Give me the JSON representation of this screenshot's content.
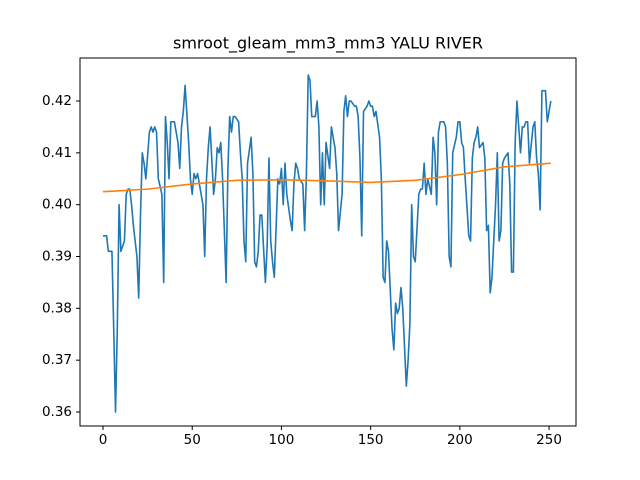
{
  "chart_data": {
    "type": "line",
    "title": "smroot_gleam_mm3_mm3 YALU RIVER",
    "xlim": [
      -12.9,
      265.1
    ],
    "ylim": [
      0.3573,
      0.4283
    ],
    "xticks": [
      0,
      50,
      100,
      150,
      200,
      250
    ],
    "yticks": [
      {
        "value": 0.36,
        "label": "0.36"
      },
      {
        "value": 0.37,
        "label": "0.37"
      },
      {
        "value": 0.38,
        "label": "0.38"
      },
      {
        "value": 0.39,
        "label": "0.39"
      },
      {
        "value": 0.4,
        "label": "0.40"
      },
      {
        "value": 0.41,
        "label": "0.41"
      },
      {
        "value": 0.42,
        "label": "0.42"
      }
    ],
    "series": [
      {
        "color": "#1f77b4",
        "x": [
          0,
          1,
          2,
          3,
          5,
          6,
          7,
          8,
          9,
          10,
          12,
          13,
          14,
          15,
          16,
          17,
          19,
          20,
          21,
          22,
          23,
          24,
          26,
          27,
          28,
          29,
          30,
          31,
          33,
          34,
          35,
          36,
          37,
          38,
          40,
          41,
          42,
          43,
          44,
          45,
          46,
          48,
          49,
          50,
          51,
          52,
          53,
          55,
          56,
          57,
          58,
          59,
          60,
          62,
          63,
          64,
          65,
          66,
          67,
          69,
          70,
          71,
          72,
          73,
          74,
          76,
          77,
          78,
          79,
          80,
          81,
          83,
          84,
          85,
          86,
          87,
          88,
          89,
          91,
          92,
          93,
          94,
          95,
          96,
          98,
          99,
          100,
          101,
          102,
          103,
          105,
          106,
          107,
          108,
          109,
          110,
          112,
          113,
          114,
          115,
          116,
          117,
          119,
          120,
          121,
          122,
          123,
          124,
          125,
          127,
          128,
          129,
          130,
          131,
          132,
          134,
          135,
          136,
          137,
          138,
          139,
          141,
          142,
          143,
          144,
          145,
          146,
          148,
          149,
          150,
          151,
          152,
          153,
          155,
          156,
          157,
          158,
          159,
          160,
          162,
          163,
          164,
          165,
          166,
          167,
          168,
          170,
          171,
          172,
          173,
          174,
          175,
          177,
          178,
          179,
          180,
          181,
          182,
          184,
          185,
          186,
          187,
          188,
          189,
          191,
          192,
          193,
          194,
          195,
          196,
          198,
          199,
          200,
          201,
          202,
          203,
          205,
          206,
          207,
          208,
          209,
          210,
          211,
          213,
          214,
          215,
          216,
          217,
          218,
          220,
          221,
          222,
          223,
          224,
          225,
          227,
          228,
          229,
          230,
          231,
          232,
          234,
          235,
          236,
          237,
          238,
          239,
          241,
          242,
          243,
          244,
          245,
          246,
          248,
          249,
          250,
          251
        ],
        "values": [
          0.394,
          0.394,
          0.394,
          0.391,
          0.391,
          0.376,
          0.36,
          0.376,
          0.4,
          0.391,
          0.393,
          0.402,
          0.403,
          0.403,
          0.4,
          0.396,
          0.39,
          0.382,
          0.398,
          0.41,
          0.408,
          0.405,
          0.414,
          0.415,
          0.414,
          0.415,
          0.414,
          0.405,
          0.402,
          0.385,
          0.417,
          0.412,
          0.405,
          0.416,
          0.416,
          0.414,
          0.412,
          0.407,
          0.415,
          0.418,
          0.423,
          0.412,
          0.405,
          0.402,
          0.406,
          0.405,
          0.406,
          0.402,
          0.4,
          0.39,
          0.405,
          0.411,
          0.415,
          0.402,
          0.405,
          0.411,
          0.41,
          0.412,
          0.405,
          0.385,
          0.407,
          0.417,
          0.414,
          0.417,
          0.417,
          0.416,
          0.41,
          0.405,
          0.393,
          0.389,
          0.408,
          0.413,
          0.406,
          0.389,
          0.388,
          0.391,
          0.398,
          0.398,
          0.385,
          0.392,
          0.409,
          0.393,
          0.389,
          0.386,
          0.405,
          0.404,
          0.407,
          0.4,
          0.408,
          0.402,
          0.397,
          0.395,
          0.404,
          0.408,
          0.407,
          0.405,
          0.404,
          0.395,
          0.406,
          0.425,
          0.424,
          0.417,
          0.417,
          0.42,
          0.415,
          0.4,
          0.41,
          0.4,
          0.412,
          0.407,
          0.415,
          0.413,
          0.411,
          0.406,
          0.395,
          0.402,
          0.418,
          0.421,
          0.417,
          0.42,
          0.42,
          0.419,
          0.419,
          0.417,
          0.409,
          0.394,
          0.418,
          0.419,
          0.42,
          0.419,
          0.419,
          0.417,
          0.418,
          0.413,
          0.405,
          0.386,
          0.385,
          0.393,
          0.391,
          0.376,
          0.372,
          0.381,
          0.379,
          0.38,
          0.384,
          0.38,
          0.365,
          0.37,
          0.377,
          0.4,
          0.39,
          0.389,
          0.402,
          0.403,
          0.403,
          0.408,
          0.402,
          0.405,
          0.402,
          0.413,
          0.41,
          0.4,
          0.414,
          0.416,
          0.416,
          0.415,
          0.408,
          0.39,
          0.388,
          0.41,
          0.413,
          0.416,
          0.416,
          0.412,
          0.411,
          0.405,
          0.394,
          0.393,
          0.409,
          0.412,
          0.413,
          0.415,
          0.411,
          0.412,
          0.409,
          0.395,
          0.396,
          0.383,
          0.386,
          0.4,
          0.41,
          0.393,
          0.395,
          0.408,
          0.409,
          0.41,
          0.404,
          0.387,
          0.387,
          0.412,
          0.42,
          0.41,
          0.415,
          0.415,
          0.416,
          0.416,
          0.408,
          0.415,
          0.416,
          0.409,
          0.406,
          0.399,
          0.422,
          0.422,
          0.416,
          0.418,
          0.42
        ]
      },
      {
        "color": "#ff7f0e",
        "x": [
          0,
          25,
          50,
          75,
          100,
          125,
          150,
          175,
          200,
          225,
          251
        ],
        "values": [
          0.4025,
          0.403,
          0.404,
          0.4047,
          0.4048,
          0.4046,
          0.4043,
          0.4047,
          0.4058,
          0.4073,
          0.408
        ]
      }
    ]
  }
}
